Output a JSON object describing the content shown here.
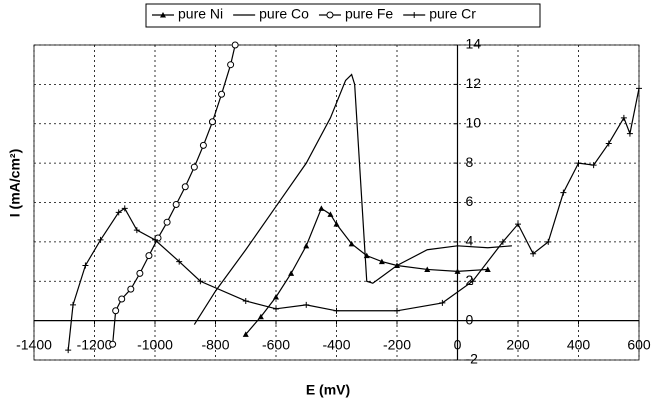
{
  "chart_data": {
    "type": "line",
    "x_label": "E (mV)",
    "y_label": "I (mA/cm²)",
    "xlim": [
      -1400,
      600
    ],
    "ylim": [
      -2,
      14
    ],
    "xticks": [
      -1400,
      -1200,
      -1000,
      -800,
      -600,
      -400,
      -200,
      0,
      200,
      400,
      600
    ],
    "yticks": [
      -2,
      0,
      2,
      4,
      6,
      8,
      10,
      12,
      14
    ],
    "grid": true,
    "legend": "top",
    "series": [
      {
        "name": "pure Ni",
        "color": "#000000",
        "marker": "triangle",
        "x": [
          -700,
          -650,
          -600,
          -550,
          -500,
          -450,
          -420,
          -400,
          -350,
          -300,
          -250,
          -200,
          -100,
          0,
          100
        ],
        "values": [
          -0.7,
          0.2,
          1.2,
          2.4,
          3.8,
          5.7,
          5.4,
          4.9,
          3.9,
          3.3,
          3.0,
          2.8,
          2.6,
          2.5,
          2.6
        ]
      },
      {
        "name": "pure Co",
        "color": "#000000",
        "marker": "none",
        "x": [
          -870,
          -800,
          -700,
          -600,
          -500,
          -420,
          -370,
          -350,
          -340,
          -320,
          -300,
          -280,
          -200,
          -100,
          0,
          100,
          180
        ],
        "values": [
          -0.2,
          1.5,
          3.6,
          5.8,
          8.0,
          10.3,
          12.2,
          12.5,
          12.0,
          7.0,
          2.0,
          1.9,
          2.8,
          3.6,
          3.8,
          3.7,
          3.8
        ]
      },
      {
        "name": "pure Fe",
        "color": "#000000",
        "marker": "circle",
        "x": [
          -1140,
          -1130,
          -1110,
          -1080,
          -1050,
          -1020,
          -990,
          -960,
          -930,
          -900,
          -870,
          -840,
          -810,
          -780,
          -750,
          -735
        ],
        "values": [
          -1.2,
          0.5,
          1.1,
          1.6,
          2.4,
          3.3,
          4.2,
          5.0,
          5.9,
          6.8,
          7.8,
          8.9,
          10.1,
          11.5,
          13.0,
          14.0
        ]
      },
      {
        "name": "pure Cr",
        "color": "#000000",
        "marker": "plus",
        "x": [
          -1287,
          -1271,
          -1230,
          -1180,
          -1120,
          -1100,
          -1060,
          -1000,
          -920,
          -850,
          -700,
          -600,
          -500,
          -400,
          -200,
          -50,
          50,
          150,
          200,
          250,
          300,
          350,
          400,
          450,
          500,
          550,
          570,
          600
        ],
        "values": [
          -1.5,
          0.8,
          2.8,
          4.1,
          5.5,
          5.7,
          4.6,
          4.1,
          3.0,
          2.0,
          1.0,
          0.6,
          0.8,
          0.5,
          0.5,
          0.9,
          2.0,
          4.0,
          4.9,
          3.4,
          4.0,
          6.5,
          8.0,
          7.9,
          9.0,
          10.3,
          9.5,
          11.8
        ]
      }
    ]
  }
}
